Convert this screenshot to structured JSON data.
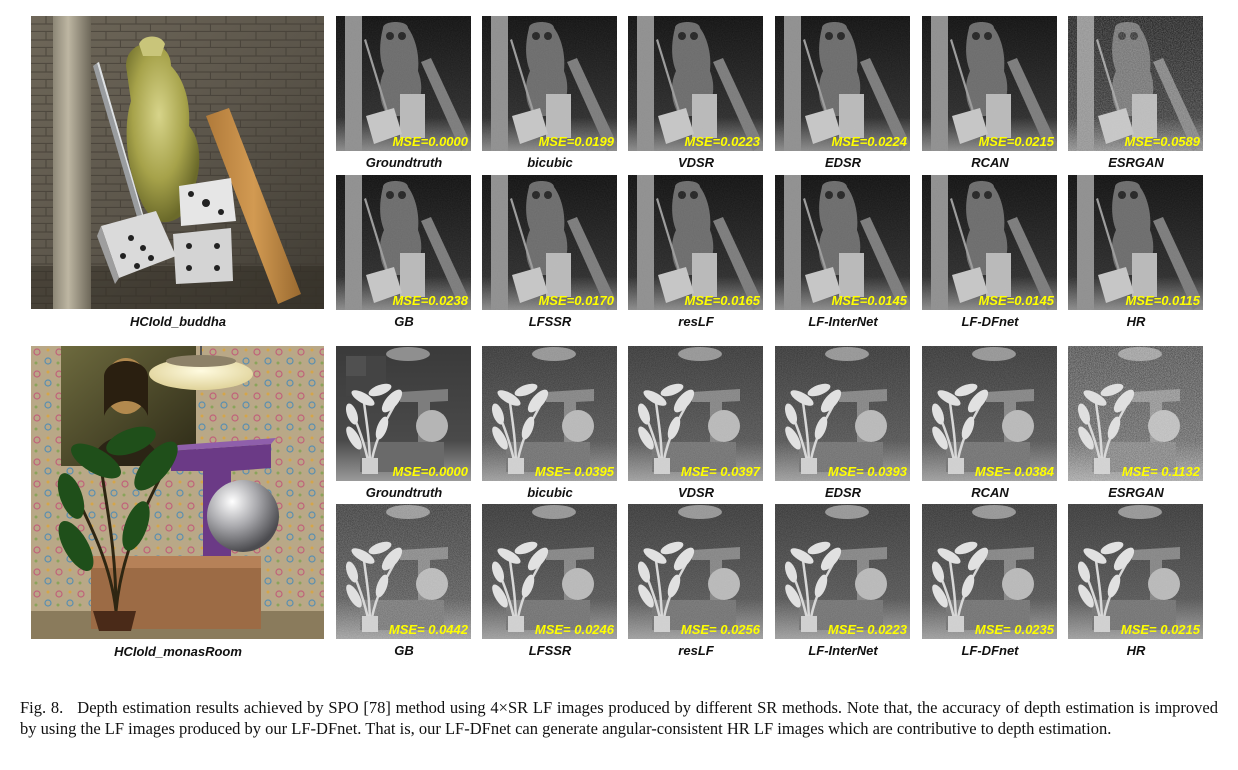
{
  "figure": {
    "panels": [
      {
        "scene_name": "HCIold_buddha",
        "rows": [
          [
            {
              "method": "Groundtruth",
              "mse": "MSE=0.0000"
            },
            {
              "method": "bicubic",
              "mse": "MSE=0.0199"
            },
            {
              "method": "VDSR",
              "mse": "MSE=0.0223"
            },
            {
              "method": "EDSR",
              "mse": "MSE=0.0224"
            },
            {
              "method": "RCAN",
              "mse": "MSE=0.0215"
            },
            {
              "method": "ESRGAN",
              "mse": "MSE=0.0589"
            }
          ],
          [
            {
              "method": "GB",
              "mse": "MSE=0.0238"
            },
            {
              "method": "LFSSR",
              "mse": "MSE=0.0170"
            },
            {
              "method": "resLF",
              "mse": "MSE=0.0165"
            },
            {
              "method": "LF-InterNet",
              "mse": "MSE=0.0145"
            },
            {
              "method": "LF-DFnet",
              "mse": "MSE=0.0145"
            },
            {
              "method": "HR",
              "mse": "MSE=0.0115"
            }
          ]
        ]
      },
      {
        "scene_name": "HCIold_monasRoom",
        "rows": [
          [
            {
              "method": "Groundtruth",
              "mse": "MSE=0.0000"
            },
            {
              "method": "bicubic",
              "mse": "MSE= 0.0395"
            },
            {
              "method": "VDSR",
              "mse": "MSE= 0.0397"
            },
            {
              "method": "EDSR",
              "mse": "MSE= 0.0393"
            },
            {
              "method": "RCAN",
              "mse": "MSE= 0.0384"
            },
            {
              "method": "ESRGAN",
              "mse": "MSE= 0.1132"
            }
          ],
          [
            {
              "method": "GB",
              "mse": "MSE= 0.0442"
            },
            {
              "method": "LFSSR",
              "mse": "MSE= 0.0246"
            },
            {
              "method": "resLF",
              "mse": "MSE= 0.0256"
            },
            {
              "method": "LF-InterNet",
              "mse": "MSE= 0.0223"
            },
            {
              "method": "LF-DFnet",
              "mse": "MSE= 0.0235"
            },
            {
              "method": "HR",
              "mse": "MSE= 0.0215"
            }
          ]
        ]
      }
    ],
    "caption": {
      "label": "Fig. 8.",
      "text": "Depth estimation results achieved by SPO [78] method using 4×SR LF images produced by different SR methods. Note that, the accuracy of depth estimation is improved by using the LF images produced by our LF-DFnet. That is, our LF-DFnet can generate angular-consistent HR LF images which are contributive to depth estimation."
    },
    "colors": {
      "mse_text": "#ffff00",
      "depth_dark": "#0d0d0d",
      "depth_light": "#c8c8c8"
    }
  }
}
